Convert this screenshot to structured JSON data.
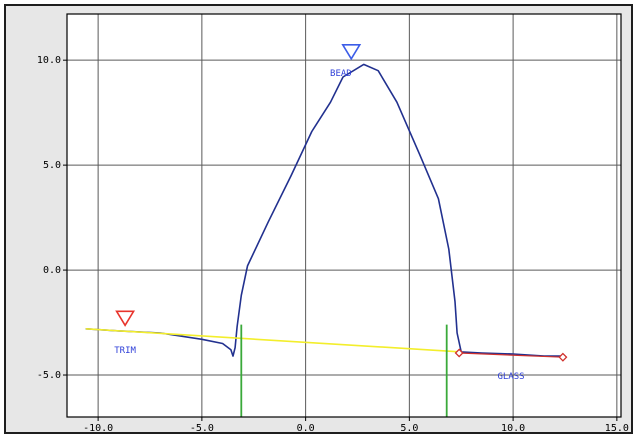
{
  "chart_data": {
    "type": "line",
    "title": "",
    "xlabel": "",
    "ylabel": "",
    "xlim": [
      -11.5,
      15.2
    ],
    "ylim": [
      -7.0,
      12.2
    ],
    "x_ticks": [
      -10.0,
      -5.0,
      0.0,
      5.0,
      10.0,
      15.0
    ],
    "x_tick_labels": [
      "-10.0",
      "-5.0",
      "0.0",
      "5.0",
      "10.0",
      "15.0"
    ],
    "y_ticks": [
      -5.0,
      0.0,
      5.0,
      10.0
    ],
    "y_tick_labels": [
      "-5.0",
      "0.0",
      "5.0",
      "10.0"
    ],
    "grid": true,
    "colors": {
      "profile": "#22318f",
      "reference": "#f3ee2c",
      "vertical": "#3aa93a",
      "trim_marker": "#e8342c",
      "bead_marker": "#3c5de8",
      "glass": "#d0302c",
      "label_text": "#2e3fd8",
      "frame_bg": "#e7e7e7"
    },
    "series": [
      {
        "values_xy": [
          [
            -10.6,
            -2.8
          ],
          [
            -9.0,
            -2.9
          ],
          [
            -7.0,
            -3.0
          ],
          [
            -5.0,
            -3.3
          ],
          [
            -4.0,
            -3.5
          ],
          [
            -3.6,
            -3.8
          ],
          [
            -3.5,
            -4.1
          ],
          [
            -3.4,
            -3.7
          ],
          [
            -3.3,
            -2.7
          ],
          [
            -3.1,
            -1.2
          ],
          [
            -2.8,
            0.2
          ],
          [
            -1.8,
            2.3
          ],
          [
            -0.7,
            4.5
          ],
          [
            0.3,
            6.6
          ],
          [
            1.2,
            8.0
          ],
          [
            1.8,
            9.2
          ],
          [
            2.8,
            9.8
          ],
          [
            3.5,
            9.5
          ],
          [
            4.4,
            8.0
          ],
          [
            5.5,
            5.5
          ],
          [
            6.4,
            3.4
          ],
          [
            6.9,
            1.0
          ],
          [
            7.2,
            -1.5
          ],
          [
            7.3,
            -3.0
          ],
          [
            7.5,
            -3.9
          ],
          [
            8.5,
            -3.95
          ],
          [
            10.0,
            -4.0
          ],
          [
            11.5,
            -4.1
          ],
          [
            12.5,
            -4.1
          ]
        ]
      },
      {
        "values_xy": [
          [
            -10.6,
            -2.8
          ],
          [
            7.5,
            -3.9
          ]
        ]
      },
      {
        "values_xy": [
          [
            -3.1,
            -7.0
          ],
          [
            -3.1,
            -2.6
          ]
        ]
      },
      {
        "values_xy": [
          [
            6.8,
            -7.0
          ],
          [
            6.8,
            -2.6
          ]
        ]
      },
      {
        "values_xy": [
          [
            7.4,
            -3.95
          ],
          [
            12.4,
            -4.15
          ]
        ]
      }
    ],
    "markers": [
      {
        "shape": "triangle-down",
        "x": -8.7,
        "y": -2.3
      },
      {
        "shape": "triangle-down",
        "x": 2.2,
        "y": 10.4
      },
      {
        "shape": "diamond",
        "x": 7.4,
        "y": -3.95
      },
      {
        "shape": "diamond",
        "x": 12.4,
        "y": -4.15
      }
    ],
    "annotations": [
      {
        "text": "TRIM",
        "x": -8.7,
        "y": -3.95
      },
      {
        "text": "BEAD",
        "x": 1.7,
        "y": 9.25
      },
      {
        "text": "GLASS",
        "x": 9.9,
        "y": -5.2
      }
    ]
  }
}
